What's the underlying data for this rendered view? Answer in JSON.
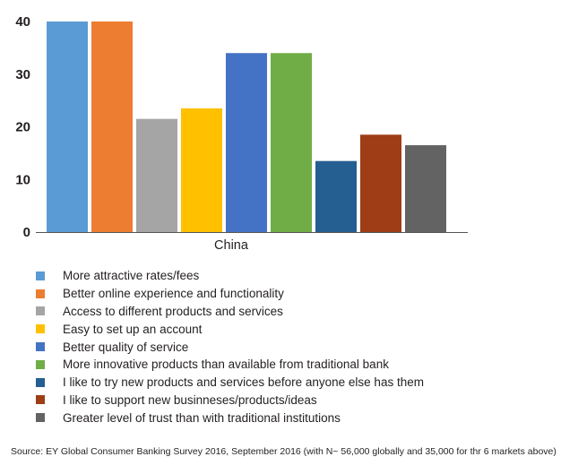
{
  "chart_data": {
    "type": "bar",
    "categories": [
      "China"
    ],
    "ylim": [
      0,
      40
    ],
    "yticks": [
      0,
      10,
      20,
      30,
      40
    ],
    "grid": false,
    "legend_position": "bottom",
    "series": [
      {
        "name": "More attractive rates/fees",
        "values": [
          40
        ],
        "color": "#5b9bd5"
      },
      {
        "name": "Better online experience and functionality",
        "values": [
          40
        ],
        "color": "#ed7d31"
      },
      {
        "name": "Access to different products and services",
        "values": [
          21.5
        ],
        "color": "#a5a5a5"
      },
      {
        "name": "Easy to set up an account",
        "values": [
          23.5
        ],
        "color": "#ffc000"
      },
      {
        "name": "Better quality of service",
        "values": [
          34
        ],
        "color": "#4472c4"
      },
      {
        "name": "More innovative products than available from traditional bank",
        "values": [
          34
        ],
        "color": "#70ad47"
      },
      {
        "name": "I like to try new products and services before anyone else has them",
        "values": [
          13.5
        ],
        "color": "#255e91"
      },
      {
        "name": "I like to support new businneses/products/ideas",
        "values": [
          18.5
        ],
        "color": "#9e3d16"
      },
      {
        "name": "Greater level of trust than with traditional institutions",
        "values": [
          16.5
        ],
        "color": "#636363"
      }
    ]
  },
  "source": "Source: EY Global Consumer Banking Survey 2016, September 2016 (with N~ 56,000 globally and 35,000 for thr 6 markets above)"
}
